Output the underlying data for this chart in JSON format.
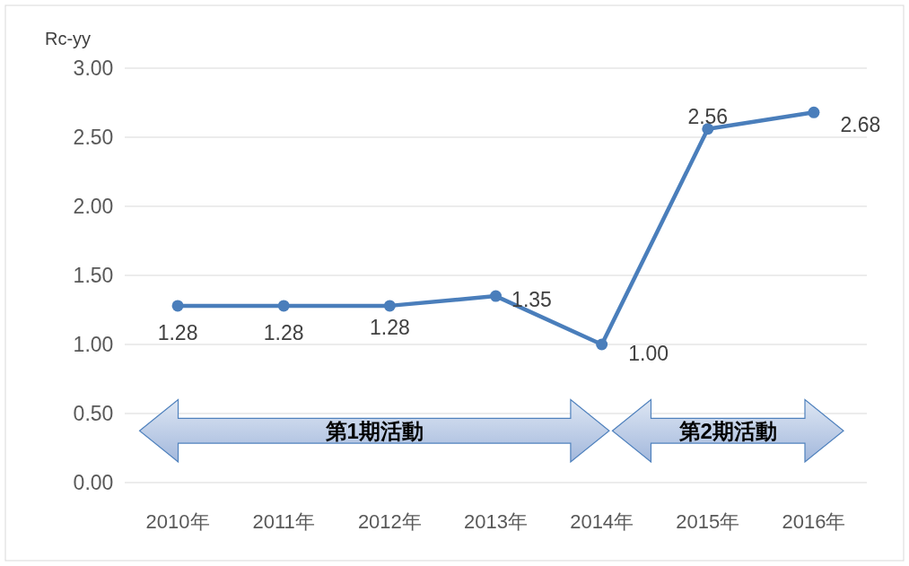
{
  "chart_data": {
    "type": "line",
    "ylabel": "Rc-yy",
    "categories": [
      "2010年",
      "2011年",
      "2012年",
      "2013年",
      "2014年",
      "2015年",
      "2016年"
    ],
    "series": [
      {
        "color": "#4a7ebb",
        "values": [
          1.28,
          1.28,
          1.28,
          1.35,
          1.0,
          2.56,
          2.68
        ]
      }
    ],
    "ylim": [
      0,
      3
    ],
    "yticks": [
      {
        "value": 0,
        "label": "0.00"
      },
      {
        "value": 0.5,
        "label": "0.50"
      },
      {
        "value": 1,
        "label": "1.00"
      },
      {
        "value": 1.5,
        "label": "1.50"
      },
      {
        "value": 2,
        "label": "2.00"
      },
      {
        "value": 2.5,
        "label": "2.50"
      },
      {
        "value": 3,
        "label": "3.00"
      }
    ],
    "annotations": [
      "第1期活動",
      "第2期活動"
    ],
    "value_labels": [
      "1.28",
      "1.28",
      "1.28",
      "1.35",
      "1.00",
      "2.56",
      "2.68"
    ],
    "grid": "y",
    "marker": "circle",
    "line_style": "solid"
  }
}
